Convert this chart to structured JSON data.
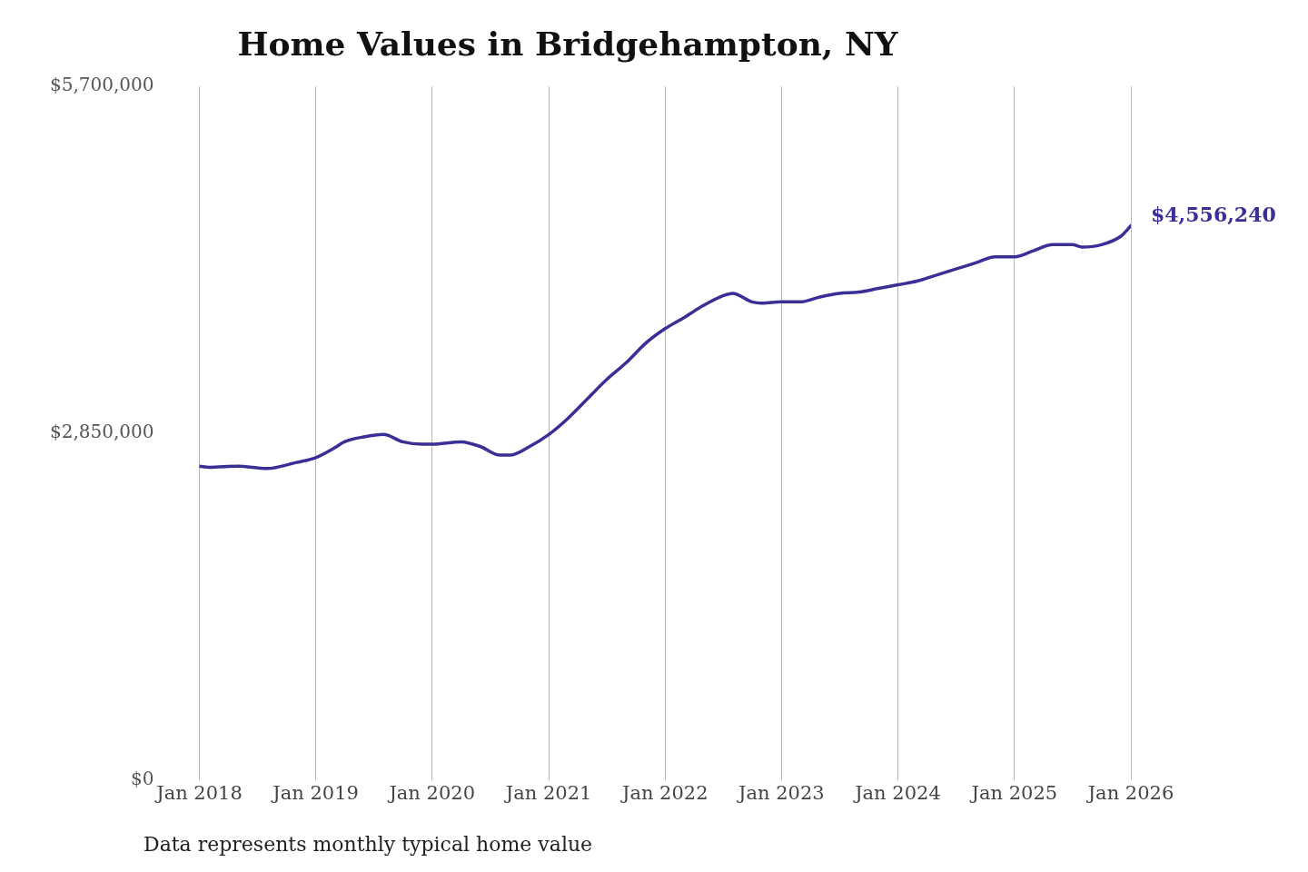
{
  "chart_data": {
    "type": "line",
    "title": "Home Values in Bridgehampton, NY",
    "x": [
      "2018-01",
      "2018-02",
      "2018-05",
      "2018-08",
      "2018-11",
      "2019-01",
      "2019-03",
      "2019-04",
      "2019-06",
      "2019-08",
      "2019-10",
      "2019-12",
      "2020-01",
      "2020-04",
      "2020-06",
      "2020-08",
      "2020-09",
      "2020-11",
      "2021-01",
      "2021-03",
      "2021-05",
      "2021-07",
      "2021-09",
      "2021-11",
      "2022-01",
      "2022-03",
      "2022-05",
      "2022-07",
      "2022-08",
      "2022-10",
      "2022-11",
      "2023-01",
      "2023-03",
      "2023-05",
      "2023-07",
      "2023-09",
      "2023-11",
      "2024-01",
      "2024-03",
      "2024-05",
      "2024-07",
      "2024-09",
      "2024-11",
      "2025-01",
      "2025-03",
      "2025-05",
      "2025-07",
      "2025-08",
      "2025-10",
      "2025-12",
      "2026-01"
    ],
    "series": [
      {
        "color": "#3a2f96",
        "values": [
          2580000,
          2570000,
          2580000,
          2560000,
          2610000,
          2650000,
          2730000,
          2780000,
          2820000,
          2840000,
          2780000,
          2760000,
          2760000,
          2780000,
          2740000,
          2670000,
          2670000,
          2740000,
          2840000,
          2970000,
          3130000,
          3290000,
          3430000,
          3590000,
          3710000,
          3800000,
          3900000,
          3980000,
          4000000,
          3930000,
          3920000,
          3930000,
          3930000,
          3970000,
          4000000,
          4010000,
          4040000,
          4070000,
          4100000,
          4150000,
          4200000,
          4250000,
          4300000,
          4300000,
          4350000,
          4400000,
          4400000,
          4380000,
          4400000,
          4470000,
          4556240
        ]
      }
    ],
    "xticks": [
      {
        "value": "2018-01",
        "label": "Jan 2018"
      },
      {
        "value": "2019-01",
        "label": "Jan 2019"
      },
      {
        "value": "2020-01",
        "label": "Jan 2020"
      },
      {
        "value": "2021-01",
        "label": "Jan 2021"
      },
      {
        "value": "2022-01",
        "label": "Jan 2022"
      },
      {
        "value": "2023-01",
        "label": "Jan 2023"
      },
      {
        "value": "2024-01",
        "label": "Jan 2024"
      },
      {
        "value": "2025-01",
        "label": "Jan 2025"
      },
      {
        "value": "2026-01",
        "label": "Jan 2026"
      }
    ],
    "xlim": [
      "2018-01",
      "2026-01"
    ],
    "ylim": [
      0,
      5700000
    ],
    "yticks": [
      {
        "value": 0,
        "label": "$0"
      },
      {
        "value": 2850000,
        "label": "$2,850,000"
      },
      {
        "value": 5700000,
        "label": "$5,700,000"
      }
    ],
    "grid": "x",
    "legend": false,
    "marker": "none",
    "line_style": "solid",
    "annotations": [
      {
        "text": "$4,556,240",
        "x": "2026-01",
        "y": 4556240
      },
      "Data represents monthly typical home value"
    ]
  }
}
